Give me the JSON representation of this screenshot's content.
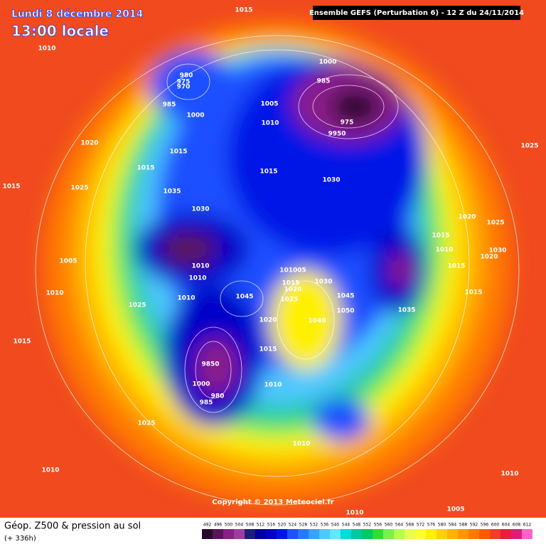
{
  "header": {
    "date": "Lundi 8 décembre 2014",
    "time": "13:00 locale",
    "model": "Ensemble GEFS (Perturbation 6)  -  12 Z du 24/11/2014"
  },
  "map": {
    "pressure_labels": [
      "1015",
      "1010",
      "980",
      "975",
      "970",
      "985",
      "1000",
      "1000",
      "985",
      "1005",
      "975",
      "1010",
      "9950",
      "1020",
      "1015",
      "1015",
      "1025",
      "1015",
      "1030",
      "1015",
      "1025",
      "1035",
      "1030",
      "1020",
      "1025",
      "1015",
      "1010",
      "1030",
      "1020",
      "1005",
      "1010",
      "101005",
      "1015",
      "1010",
      "1015",
      "1030",
      "1020",
      "1010",
      "1015",
      "1010",
      "1025",
      "1045",
      "1045",
      "1025",
      "1050",
      "1035",
      "1020",
      "1040",
      "1015",
      "1015",
      "9850",
      "1000",
      "1010",
      "980",
      "985",
      "1025",
      "1010",
      "1010",
      "1010",
      "1005",
      "1010"
    ]
  },
  "copyright": "Copyright © 2013 Meteociel.fr",
  "footer": {
    "title": "Géop. Z500 & pression au sol",
    "lead": "(+ 336h)"
  },
  "legend": {
    "values": [
      492,
      496,
      500,
      504,
      508,
      512,
      516,
      520,
      524,
      528,
      532,
      536,
      540,
      544,
      548,
      552,
      556,
      560,
      564,
      568,
      572,
      576,
      580,
      584,
      588,
      592,
      596,
      600,
      604,
      608,
      612
    ],
    "colors": [
      "#2a0a2a",
      "#5a145a",
      "#8a1e8a",
      "#a03ca0",
      "#1e1e78",
      "#0000a0",
      "#0000c8",
      "#0014e6",
      "#1e50ff",
      "#2878ff",
      "#3ca0ff",
      "#50c8ff",
      "#64e6ff",
      "#00dcdc",
      "#00c8a0",
      "#00c864",
      "#32dc32",
      "#78f050",
      "#b4ff50",
      "#e6ff50",
      "#ffff32",
      "#fff000",
      "#ffd200",
      "#ffb400",
      "#ff9600",
      "#ff7800",
      "#ff5a00",
      "#f03c28",
      "#e61e3c",
      "#dc1e78",
      "#ff64c8"
    ]
  }
}
